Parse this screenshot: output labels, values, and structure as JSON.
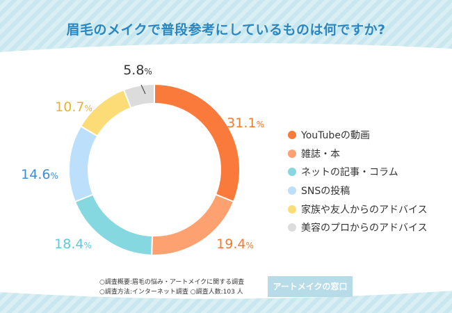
{
  "title": "眉毛のメイクで普段参考にしているものは何ですか?",
  "chart_data": {
    "type": "pie",
    "donut": true,
    "categories": [
      "YouTubeの動画",
      "雑誌・本",
      "ネットの記事・コラム",
      "SNSの投稿",
      "家族や友人からのアドバイス",
      "美容のプロからのアドバイス"
    ],
    "values": [
      31.1,
      19.4,
      18.4,
      14.6,
      10.7,
      5.8
    ],
    "unit": "%",
    "colors": [
      "#fa7a3c",
      "#fca16f",
      "#86d8e0",
      "#bcdffb",
      "#fbdc77",
      "#dcdcdc"
    ],
    "label_colors": [
      "#f47a2e",
      "#f47a2e",
      "#5ccbd6",
      "#3d8ed4",
      "#e8b52a",
      "#333333"
    ],
    "legend_position": "right"
  },
  "notes": {
    "line1": "○調査概要:眉毛の悩み・アートメイクに関する調査",
    "line2": "○調査方法:インターネット調査  ○調査人数:103 人"
  },
  "brand": "アートメイクの窓口"
}
